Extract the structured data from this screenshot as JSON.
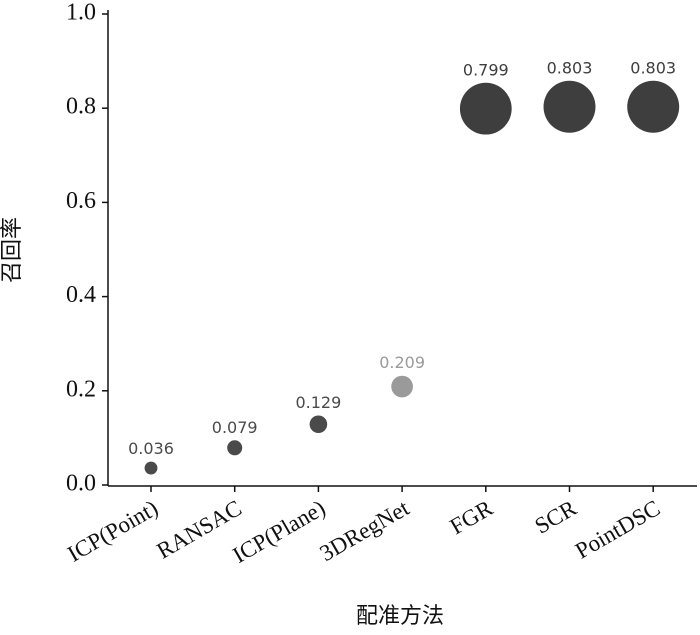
{
  "chart_data": {
    "type": "scatter",
    "x_label": "配准方法",
    "y_label": "召回率",
    "categories": [
      "ICP(Point)",
      "RANSAC",
      "ICP(Plane)",
      "3DRegNet",
      "FGR",
      "SCR",
      "PointDSC"
    ],
    "values": [
      0.036,
      0.079,
      0.129,
      0.209,
      0.799,
      0.803,
      0.803
    ],
    "colors": [
      "#4a4a4a",
      "#4a4a4a",
      "#4a4a4a",
      "#9a9a9a",
      "#3e3e3e",
      "#3e3e3e",
      "#3e3e3e"
    ],
    "ylim": [
      0,
      1
    ],
    "yticks": [
      {
        "value": 0,
        "label": "0.0"
      },
      0.2,
      0.4,
      0.6,
      0.8,
      {
        "value": 1,
        "label": "1.0"
      }
    ]
  }
}
